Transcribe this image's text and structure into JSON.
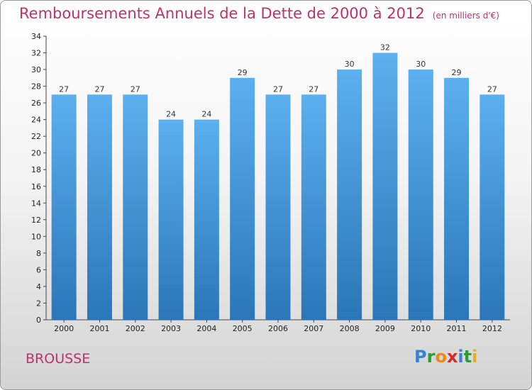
{
  "chart_data": {
    "type": "bar",
    "title": "Remboursements Annuels de la Dette de 2000 à 2012",
    "subtitle": "(en milliers d'€)",
    "categories": [
      "2000",
      "2001",
      "2002",
      "2003",
      "2004",
      "2005",
      "2006",
      "2007",
      "2008",
      "2009",
      "2010",
      "2011",
      "2012"
    ],
    "values": [
      27,
      27,
      27,
      24,
      24,
      29,
      27,
      27,
      30,
      32,
      30,
      29,
      27
    ],
    "ylim": [
      0,
      34
    ],
    "yticks": [
      0,
      2,
      4,
      6,
      8,
      10,
      12,
      14,
      16,
      18,
      20,
      22,
      24,
      26,
      28,
      30,
      32,
      34
    ],
    "grid": false,
    "bar_color": "#4a9ee0"
  },
  "footer": {
    "town": "BROUSSE",
    "logo": [
      "P",
      "r",
      "o",
      "x",
      "i",
      "t",
      "i"
    ]
  },
  "colors": {
    "title": "#c0306a",
    "logo": [
      "#3b7fd0",
      "#2e9a3a",
      "#e98a1c",
      "#d42a2a",
      "#3b7fd0",
      "#2e9a3a",
      "#e0b020"
    ]
  }
}
